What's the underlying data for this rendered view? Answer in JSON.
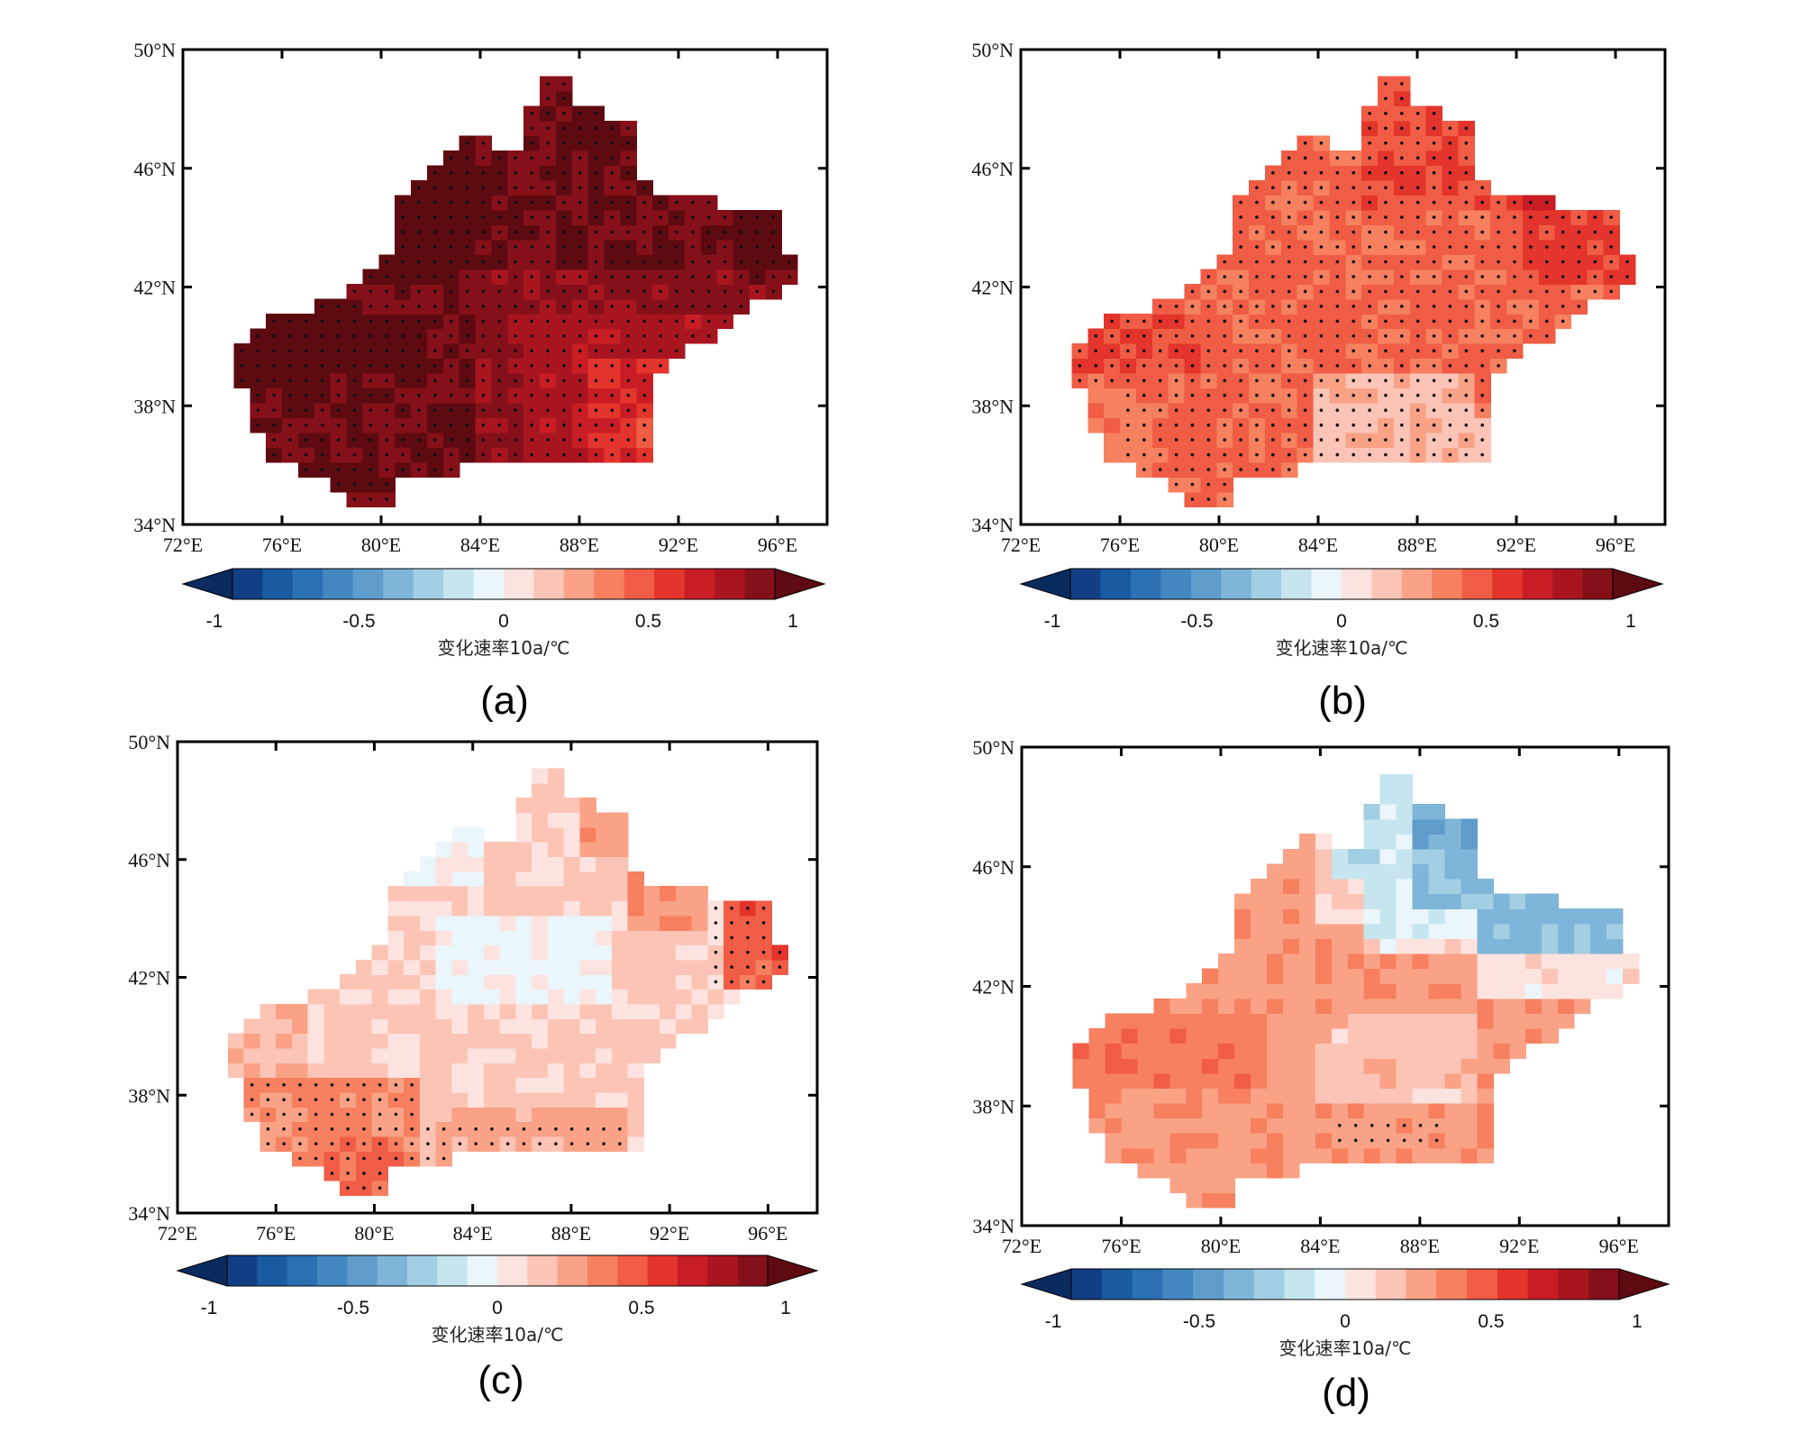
{
  "colorbar": {
    "ticks": [
      "-1",
      "-0.5",
      "0",
      "0.5",
      "1"
    ],
    "title": "变化速率10a/℃",
    "colors": [
      "#0b2a5e",
      "#123f84",
      "#1a5aa0",
      "#2b70b3",
      "#4387c0",
      "#5f9ccb",
      "#7fb5d8",
      "#a2cfe3",
      "#c7e5ef",
      "#eaf6fb",
      "#fde3df",
      "#fcc4b6",
      "#f9a286",
      "#f6805f",
      "#f05c45",
      "#e3352c",
      "#c81d24",
      "#a8151f",
      "#85101a",
      "#5e0a11"
    ]
  },
  "chart_data": [
    {
      "panel": "(a)",
      "type": "heatmap",
      "xticks": [
        "72°E",
        "76°E",
        "80°E",
        "84°E",
        "88°E",
        "92°E",
        "96°E"
      ],
      "yticks": [
        "50°N",
        "46°N",
        "42°N",
        "38°N",
        "34°N"
      ],
      "xlim": [
        72,
        98
      ],
      "ylim": [
        34,
        50
      ],
      "values_range": [
        0.5,
        1.0
      ],
      "dominant_value": 0.85,
      "stippling": "most of region (significant)",
      "colorbar_label": "变化速率10a/℃"
    },
    {
      "panel": "(b)",
      "type": "heatmap",
      "xticks": [
        "72°E",
        "76°E",
        "80°E",
        "84°E",
        "88°E",
        "92°E",
        "96°E"
      ],
      "yticks": [
        "50°N",
        "46°N",
        "42°N",
        "38°N",
        "34°N"
      ],
      "xlim": [
        72,
        98
      ],
      "ylim": [
        34,
        50
      ],
      "values_range": [
        0.1,
        0.65
      ],
      "dominant_value": 0.4,
      "stippling": "most of region (significant)",
      "colorbar_label": "变化速率10a/℃"
    },
    {
      "panel": "(c)",
      "type": "heatmap",
      "xticks": [
        "72°E",
        "76°E",
        "80°E",
        "84°E",
        "88°E",
        "92°E",
        "96°E"
      ],
      "yticks": [
        "50°N",
        "46°N",
        "42°N",
        "38°N",
        "34°N"
      ],
      "xlim": [
        72,
        98
      ],
      "ylim": [
        34,
        50
      ],
      "values_range": [
        -0.05,
        0.5
      ],
      "dominant_value": 0.15,
      "stippling": "southwest and far east only",
      "colorbar_label": "变化速率10a/℃"
    },
    {
      "panel": "(d)",
      "type": "heatmap",
      "xticks": [
        "72°E",
        "76°E",
        "80°E",
        "84°E",
        "88°E",
        "92°E",
        "96°E"
      ],
      "yticks": [
        "50°N",
        "46°N",
        "42°N",
        "38°N",
        "34°N"
      ],
      "xlim": [
        72,
        98
      ],
      "ylim": [
        34,
        50
      ],
      "values_range": [
        -0.5,
        0.4
      ],
      "dominant_value": 0.25,
      "stippling": "small area in south",
      "colorbar_label": "变化速率10a/℃"
    }
  ]
}
